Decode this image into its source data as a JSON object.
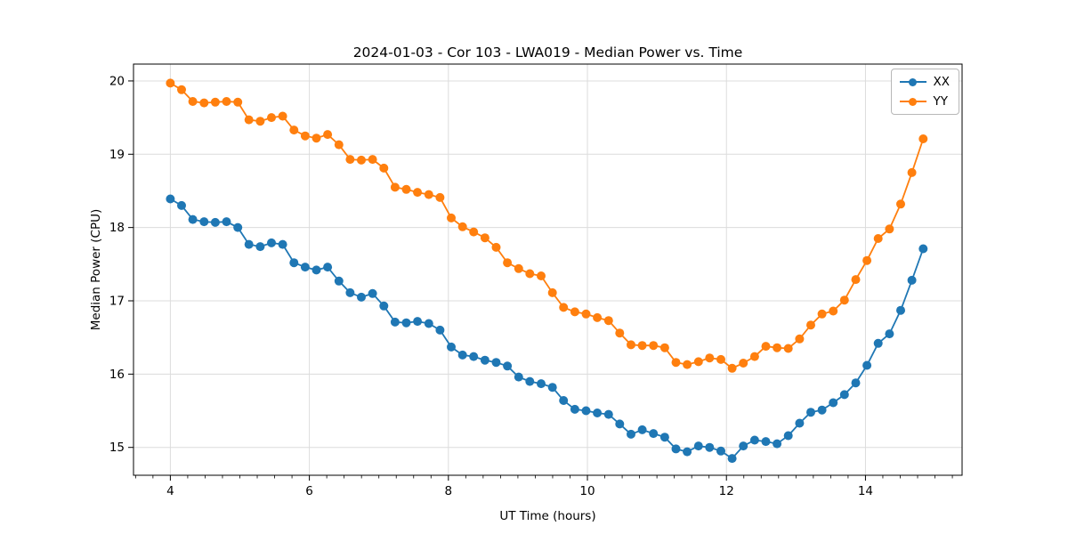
{
  "chart_data": {
    "type": "line",
    "title": "2024-01-03 - Cor 103 - LWA019 - Median Power vs. Time",
    "xlabel": "UT Time (hours)",
    "ylabel": "Median Power (CPU)",
    "xlim": [
      3.47,
      15.39
    ],
    "ylim": [
      14.62,
      20.23
    ],
    "xticks": [
      4,
      6,
      8,
      10,
      12,
      14
    ],
    "yticks": [
      15,
      16,
      17,
      18,
      19,
      20
    ],
    "x_minor_step": 0.25,
    "grid": true,
    "grid_color": "#dcdcdc",
    "legend_position": "upper right",
    "x": [
      4.0,
      4.162,
      4.323,
      4.485,
      4.647,
      4.808,
      4.97,
      5.131,
      5.293,
      5.455,
      5.616,
      5.778,
      5.94,
      6.101,
      6.263,
      6.425,
      6.586,
      6.748,
      6.909,
      7.071,
      7.233,
      7.394,
      7.556,
      7.718,
      7.879,
      8.041,
      8.203,
      8.364,
      8.526,
      8.687,
      8.849,
      9.011,
      9.172,
      9.334,
      9.496,
      9.657,
      9.819,
      9.98,
      10.142,
      10.304,
      10.465,
      10.627,
      10.789,
      10.95,
      11.112,
      11.274,
      11.435,
      11.597,
      11.758,
      11.92,
      12.082,
      12.243,
      12.405,
      12.567,
      12.728,
      12.89,
      13.052,
      13.213,
      13.375,
      13.536,
      13.698,
      13.86,
      14.021,
      14.183,
      14.345,
      14.506,
      14.668,
      14.83
    ],
    "series": [
      {
        "name": "XX",
        "color": "#1f77b4",
        "values": [
          18.39,
          18.3,
          18.11,
          18.08,
          18.07,
          18.08,
          18.0,
          17.77,
          17.74,
          17.79,
          17.77,
          17.52,
          17.46,
          17.42,
          17.46,
          17.27,
          17.11,
          17.05,
          17.1,
          16.93,
          16.71,
          16.7,
          16.72,
          16.69,
          16.6,
          16.37,
          16.26,
          16.24,
          16.19,
          16.16,
          16.11,
          15.96,
          15.9,
          15.87,
          15.82,
          15.64,
          15.52,
          15.5,
          15.47,
          15.45,
          15.32,
          15.18,
          15.24,
          15.19,
          15.14,
          14.98,
          14.94,
          15.02,
          15.0,
          14.95,
          14.85,
          15.02,
          15.1,
          15.08,
          15.05,
          15.16,
          15.33,
          15.48,
          15.51,
          15.61,
          15.72,
          15.88,
          16.12,
          16.42,
          16.55,
          16.87,
          17.28,
          17.71
        ]
      },
      {
        "name": "YY",
        "color": "#ff7f0e",
        "values": [
          19.97,
          19.88,
          19.72,
          19.7,
          19.71,
          19.72,
          19.71,
          19.47,
          19.45,
          19.5,
          19.52,
          19.33,
          19.25,
          19.22,
          19.27,
          19.13,
          18.93,
          18.92,
          18.93,
          18.81,
          18.55,
          18.52,
          18.48,
          18.45,
          18.41,
          18.13,
          18.01,
          17.94,
          17.86,
          17.73,
          17.52,
          17.44,
          17.37,
          17.34,
          17.11,
          16.91,
          16.85,
          16.82,
          16.77,
          16.73,
          16.56,
          16.4,
          16.39,
          16.39,
          16.36,
          16.16,
          16.13,
          16.17,
          16.22,
          16.2,
          16.08,
          16.15,
          16.24,
          16.38,
          16.36,
          16.35,
          16.48,
          16.67,
          16.82,
          16.86,
          17.01,
          17.29,
          17.55,
          17.85,
          17.98,
          18.32,
          18.75,
          19.21
        ]
      }
    ]
  }
}
